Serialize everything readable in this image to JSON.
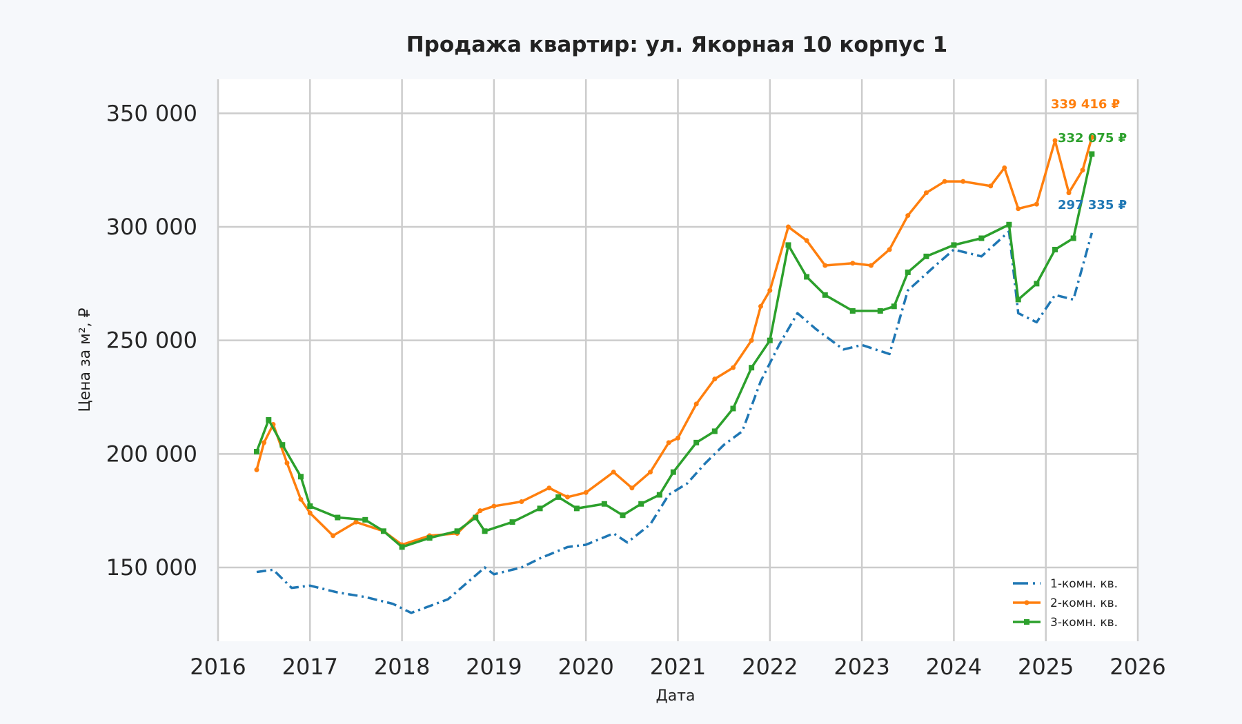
{
  "chart_data": {
    "type": "line",
    "title": "Продажа квартир: ул. Якорная 10 корпус 1",
    "xlabel": "Дата",
    "ylabel": "Цена за м², ₽",
    "xlim": [
      2016,
      2026
    ],
    "ylim": [
      117500,
      365000
    ],
    "xticks": [
      2016,
      2017,
      2018,
      2019,
      2020,
      2021,
      2022,
      2023,
      2024,
      2025,
      2026
    ],
    "xtick_labels": [
      "2016",
      "2017",
      "2018",
      "2019",
      "2020",
      "2021",
      "2022",
      "2023",
      "2024",
      "2025",
      "2026"
    ],
    "yticks": [
      150000,
      200000,
      250000,
      300000,
      350000
    ],
    "ytick_labels": [
      "150 000",
      "200 000",
      "250 000",
      "300 000",
      "350 000"
    ],
    "grid": true,
    "legend_position": "bottom-right",
    "series": [
      {
        "name": "1-комн. кв.",
        "color": "#1f77b4",
        "style": "dashdot",
        "marker": "none",
        "x": [
          2016.42,
          2016.6,
          2016.8,
          2017.0,
          2017.3,
          2017.6,
          2017.9,
          2018.1,
          2018.3,
          2018.5,
          2018.7,
          2018.9,
          2019.0,
          2019.3,
          2019.5,
          2019.8,
          2020.0,
          2020.3,
          2020.45,
          2020.7,
          2020.9,
          2021.1,
          2021.3,
          2021.5,
          2021.7,
          2021.9,
          2022.1,
          2022.3,
          2022.5,
          2022.8,
          2023.0,
          2023.3,
          2023.5,
          2023.8,
          2024.0,
          2024.3,
          2024.6,
          2024.7,
          2024.9,
          2025.1,
          2025.3,
          2025.5
        ],
        "y": [
          148000,
          149000,
          141000,
          142000,
          139000,
          137000,
          134000,
          130000,
          133000,
          136000,
          143000,
          150000,
          147000,
          150000,
          154000,
          159000,
          160000,
          165000,
          161000,
          169000,
          182000,
          187000,
          196000,
          204000,
          210000,
          232000,
          248000,
          262000,
          255000,
          246000,
          248000,
          244000,
          272000,
          283000,
          290000,
          287000,
          298000,
          262000,
          258000,
          270000,
          268000,
          297335
        ],
        "last_label": "297 335 ₽"
      },
      {
        "name": "2-комн. кв.",
        "color": "#ff7f0e",
        "style": "solid",
        "marker": "dot",
        "x": [
          2016.42,
          2016.5,
          2016.6,
          2016.75,
          2016.9,
          2017.0,
          2017.25,
          2017.5,
          2017.8,
          2018.0,
          2018.3,
          2018.6,
          2018.85,
          2019.0,
          2019.3,
          2019.6,
          2019.8,
          2020.0,
          2020.3,
          2020.5,
          2020.7,
          2020.9,
          2021.0,
          2021.2,
          2021.4,
          2021.6,
          2021.8,
          2021.9,
          2022.0,
          2022.2,
          2022.4,
          2022.6,
          2022.9,
          2023.1,
          2023.3,
          2023.5,
          2023.7,
          2023.9,
          2024.1,
          2024.4,
          2024.55,
          2024.7,
          2024.9,
          2025.1,
          2025.25,
          2025.4,
          2025.5
        ],
        "y": [
          193000,
          205000,
          213000,
          196000,
          180000,
          174000,
          164000,
          170000,
          166000,
          160000,
          164000,
          165000,
          175000,
          177000,
          179000,
          185000,
          181000,
          183000,
          192000,
          185000,
          192000,
          205000,
          207000,
          222000,
          233000,
          238000,
          250000,
          265000,
          272000,
          300000,
          294000,
          283000,
          284000,
          283000,
          290000,
          305000,
          315000,
          320000,
          320000,
          318000,
          326000,
          308000,
          310000,
          338000,
          315000,
          325000,
          339416
        ],
        "last_label": "339 416 ₽"
      },
      {
        "name": "3-комн. кв.",
        "color": "#2ca02c",
        "style": "solid",
        "marker": "square",
        "x": [
          2016.42,
          2016.55,
          2016.7,
          2016.9,
          2017.0,
          2017.3,
          2017.6,
          2017.8,
          2018.0,
          2018.3,
          2018.6,
          2018.8,
          2018.9,
          2019.2,
          2019.5,
          2019.7,
          2019.9,
          2020.2,
          2020.4,
          2020.6,
          2020.8,
          2020.95,
          2021.2,
          2021.4,
          2021.6,
          2021.8,
          2022.0,
          2022.2,
          2022.4,
          2022.6,
          2022.9,
          2023.2,
          2023.35,
          2023.5,
          2023.7,
          2024.0,
          2024.3,
          2024.6,
          2024.7,
          2024.9,
          2025.1,
          2025.3,
          2025.5
        ],
        "y": [
          201000,
          215000,
          204000,
          190000,
          177000,
          172000,
          171000,
          166000,
          159000,
          163000,
          166000,
          172000,
          166000,
          170000,
          176000,
          181000,
          176000,
          178000,
          173000,
          178000,
          182000,
          192000,
          205000,
          210000,
          220000,
          238000,
          250000,
          292000,
          278000,
          270000,
          263000,
          263000,
          265000,
          280000,
          287000,
          292000,
          295000,
          301000,
          268000,
          275000,
          290000,
          295000,
          332075
        ],
        "last_label": "332 075 ₽"
      }
    ]
  }
}
